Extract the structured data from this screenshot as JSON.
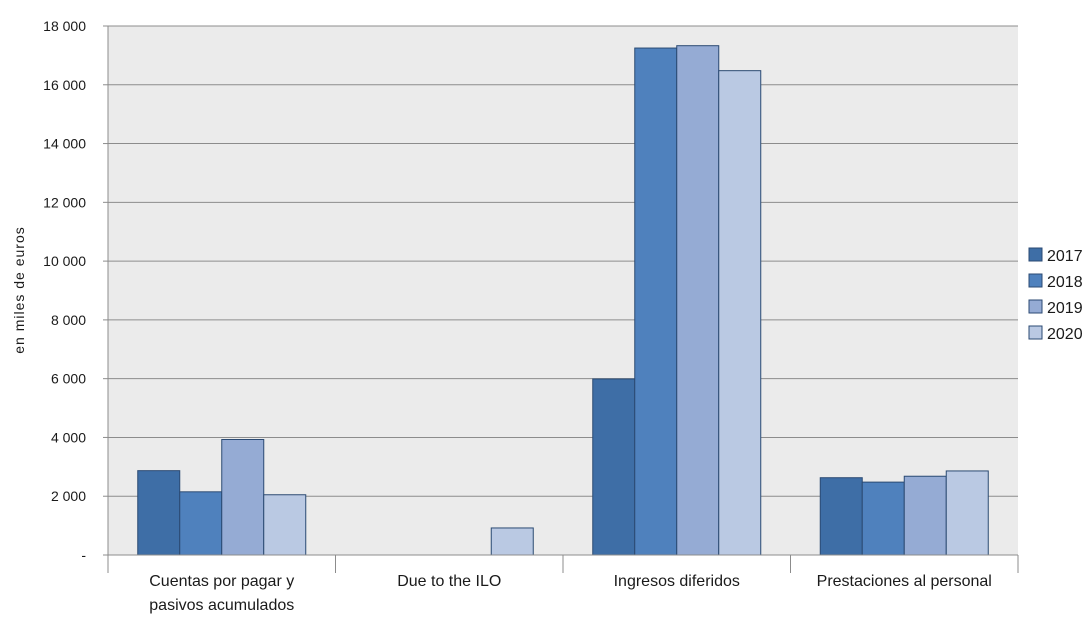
{
  "chart_data": {
    "type": "bar",
    "ylabel": "en miles de euros",
    "xlabel": "",
    "ylim": [
      0,
      18000
    ],
    "yticks": [
      {
        "value": 0,
        "label": "-"
      },
      {
        "value": 2000,
        "label": "2 000"
      },
      {
        "value": 4000,
        "label": "4 000"
      },
      {
        "value": 6000,
        "label": "6 000"
      },
      {
        "value": 8000,
        "label": "8 000"
      },
      {
        "value": 10000,
        "label": "10 000"
      },
      {
        "value": 12000,
        "label": "12 000"
      },
      {
        "value": 14000,
        "label": "14 000"
      },
      {
        "value": 16000,
        "label": "16 000"
      },
      {
        "value": 18000,
        "label": "18 000"
      }
    ],
    "categories": [
      [
        "Cuentas por pagar y",
        "pasivos acumulados"
      ],
      [
        "Due to the ILO"
      ],
      [
        "Ingresos diferidos"
      ],
      [
        "Prestaciones al personal"
      ]
    ],
    "series": [
      {
        "name": "2017",
        "color": "#3e6ea6",
        "values": [
          2870,
          0,
          5990,
          2630
        ]
      },
      {
        "name": "2018",
        "color": "#4f81bd",
        "values": [
          2150,
          0,
          17250,
          2480
        ]
      },
      {
        "name": "2019",
        "color": "#95abd4",
        "values": [
          3930,
          0,
          17330,
          2680
        ]
      },
      {
        "name": "2020",
        "color": "#bac9e3",
        "values": [
          2050,
          920,
          16480,
          2860
        ]
      }
    ],
    "grid": true,
    "plot_background": "#ebebeb",
    "legend_position": "right"
  }
}
